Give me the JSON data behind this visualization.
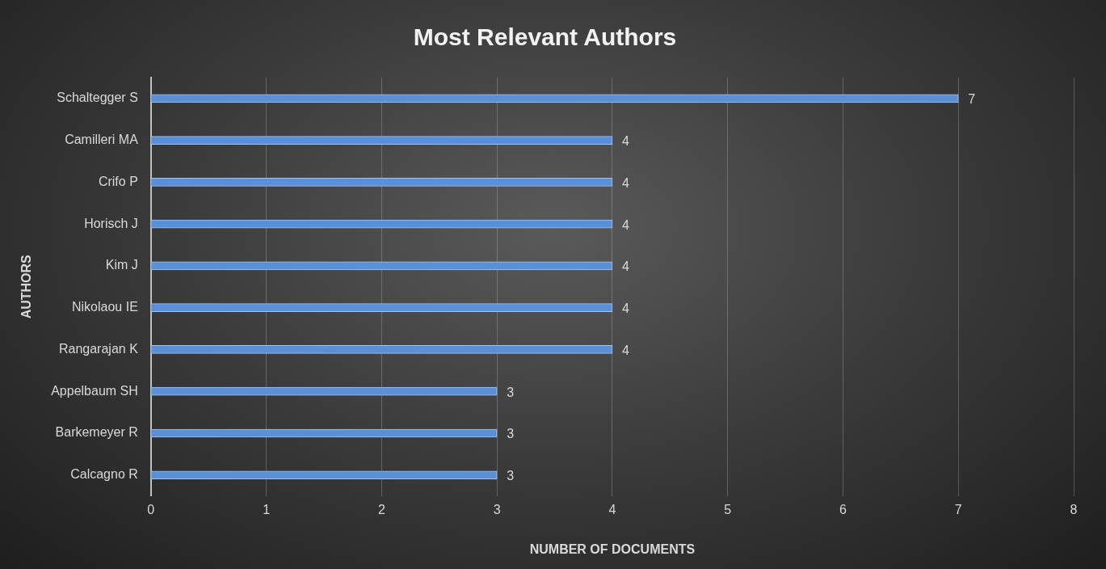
{
  "chart_data": {
    "type": "bar",
    "orientation": "horizontal",
    "title": "Most Relevant Authors",
    "xlabel": "NUMBER OF DOCUMENTS",
    "ylabel": "AUTHORS",
    "categories": [
      "Schaltegger S",
      "Camilleri MA",
      "Crifo P",
      "Horisch J",
      "Kim J",
      "Nikolaou IE",
      "Rangarajan K",
      "Appelbaum SH",
      "Barkemeyer R",
      "Calcagno R"
    ],
    "values": [
      7,
      4,
      4,
      4,
      4,
      4,
      4,
      3,
      3,
      3
    ],
    "color": "#5b8fd6",
    "xlim": [
      0,
      8
    ],
    "xticks": [
      0,
      1,
      2,
      3,
      4,
      5,
      6,
      7,
      8
    ],
    "grid": "x",
    "data_labels": true
  }
}
